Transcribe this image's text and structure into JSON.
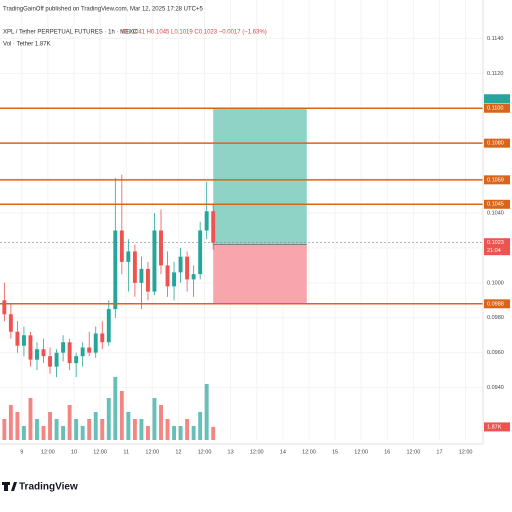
{
  "chart_data": {
    "type": "candlestick",
    "title": "TradingGainOff published on TradingView.com, Mar 12, 2025 17:28 UTC+5",
    "symbol": "XPL / Tether PERPETUAL FUTURES · 1h · MEXC",
    "ohlc_legend": "O0.1041 H0.1045 L0.1019 C0.1023 −0.0017 (−1.63%)",
    "volume_legend": "Vol · Tether 1.87K",
    "brand": "TradingView",
    "x": [
      -8,
      -5,
      -2,
      1,
      4,
      7,
      10,
      13,
      16,
      19,
      22,
      25,
      28,
      31,
      34,
      37,
      40,
      43,
      46,
      49,
      52,
      55,
      58,
      61,
      64,
      67,
      70,
      73,
      76,
      79,
      82,
      85,
      88
    ],
    "open": [
      0.099,
      0.0982,
      0.0972,
      0.0964,
      0.097,
      0.0956,
      0.0962,
      0.0958,
      0.0952,
      0.096,
      0.0966,
      0.0954,
      0.0958,
      0.0963,
      0.096,
      0.0971,
      0.0966,
      0.0985,
      0.103,
      0.1012,
      0.1018,
      0.1,
      0.1008,
      0.0995,
      0.103,
      0.101,
      0.0998,
      0.1006,
      0.1015,
      0.1002,
      0.1005,
      0.103,
      0.1041
    ],
    "high": [
      0.1,
      0.0988,
      0.0978,
      0.0975,
      0.0972,
      0.0966,
      0.0968,
      0.0963,
      0.0962,
      0.097,
      0.0968,
      0.096,
      0.0966,
      0.0972,
      0.0975,
      0.0978,
      0.099,
      0.106,
      0.1062,
      0.1025,
      0.1022,
      0.1015,
      0.1012,
      0.104,
      0.1042,
      0.1018,
      0.1012,
      0.102,
      0.1018,
      0.101,
      0.1035,
      0.1058,
      0.1045
    ],
    "low": [
      0.0978,
      0.0968,
      0.096,
      0.0958,
      0.0952,
      0.095,
      0.0954,
      0.0948,
      0.0946,
      0.0955,
      0.095,
      0.0946,
      0.0952,
      0.0958,
      0.0957,
      0.0962,
      0.0964,
      0.098,
      0.1005,
      0.0995,
      0.0992,
      0.0985,
      0.099,
      0.0993,
      0.1005,
      0.0992,
      0.099,
      0.1,
      0.0995,
      0.0992,
      0.1002,
      0.1025,
      0.1019
    ],
    "close": [
      0.0982,
      0.0972,
      0.0964,
      0.097,
      0.0956,
      0.0962,
      0.0958,
      0.0952,
      0.096,
      0.0966,
      0.0954,
      0.0958,
      0.0963,
      0.096,
      0.0971,
      0.0966,
      0.0985,
      0.103,
      0.1012,
      0.1018,
      0.1,
      0.1008,
      0.0995,
      0.103,
      0.101,
      0.0998,
      0.1006,
      0.1015,
      0.1002,
      0.1005,
      0.103,
      0.1041,
      0.1023
    ],
    "volume": [
      3,
      5,
      4,
      2,
      6,
      3,
      2,
      4,
      3,
      2,
      5,
      3,
      2,
      3,
      4,
      3,
      6,
      9,
      7,
      4,
      3,
      3,
      2,
      6,
      5,
      3,
      2,
      2,
      3,
      2,
      4,
      8,
      1.87
    ],
    "volume_last_label": "1.87K",
    "vlim": [
      0,
      10
    ],
    "up_color": "#26a69a",
    "down_color": "#ef5350",
    "xlim": [
      -10,
      212
    ],
    "xticks": [
      {
        "value": 0,
        "label": "9"
      },
      {
        "value": 12,
        "label": "12:00"
      },
      {
        "value": 24,
        "label": "10"
      },
      {
        "value": 36,
        "label": "12:00"
      },
      {
        "value": 48,
        "label": "11"
      },
      {
        "value": 60,
        "label": "12:00"
      },
      {
        "value": 72,
        "label": "12"
      },
      {
        "value": 84,
        "label": "12:00"
      },
      {
        "value": 96,
        "label": "13"
      },
      {
        "value": 108,
        "label": "12:00"
      },
      {
        "value": 120,
        "label": "14"
      },
      {
        "value": 132,
        "label": "12:00"
      },
      {
        "value": 144,
        "label": "15"
      },
      {
        "value": 156,
        "label": "12:00"
      },
      {
        "value": 168,
        "label": "16"
      },
      {
        "value": 180,
        "label": "12:00"
      },
      {
        "value": 192,
        "label": "17"
      },
      {
        "value": 204,
        "label": "12:00"
      }
    ],
    "ylim": [
      0.091,
      0.1162
    ],
    "yticks": [
      {
        "value": 0.114,
        "label": "0.1140"
      },
      {
        "value": 0.112,
        "label": "0.1120"
      },
      {
        "value": 0.11,
        "label": "0.1100"
      },
      {
        "value": 0.108,
        "label": "0.1080"
      },
      {
        "value": 0.106,
        "label": "0.1060"
      },
      {
        "value": 0.104,
        "label": "0.1040"
      },
      {
        "value": 0.102,
        "label": "0.1020"
      },
      {
        "value": 0.1,
        "label": "0.1000"
      },
      {
        "value": 0.098,
        "label": "0.0980"
      },
      {
        "value": 0.096,
        "label": "0.0960"
      },
      {
        "value": 0.094,
        "label": "0.0940"
      }
    ],
    "lines": [
      {
        "price": 0.11,
        "label": "0.1100"
      },
      {
        "price": 0.108,
        "label": "0.1080"
      },
      {
        "price": 0.1059,
        "label": "0.1059"
      },
      {
        "price": 0.1045,
        "label": "0.1045"
      },
      {
        "price": 0.0988,
        "label": "0.0988"
      }
    ],
    "line_color": "#d9651a",
    "position": {
      "x_start": 88,
      "x_end": 131,
      "entry": 0.1022,
      "target": 0.11,
      "stop": 0.0988,
      "target_color": "#8fd3c6",
      "stop_color": "#f7a6ad"
    },
    "countdown": "21:04"
  }
}
